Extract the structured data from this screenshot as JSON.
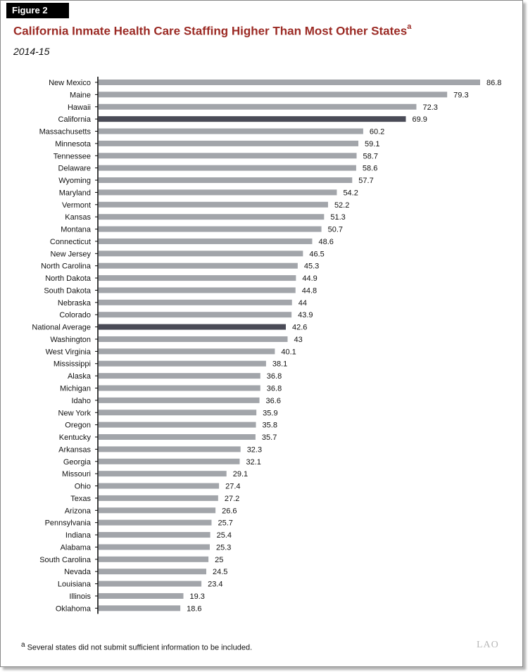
{
  "figure_label": "Figure 2",
  "title": "California Inmate Health Care Staffing Higher Than Most Other States",
  "title_footnote_marker": "a",
  "subtitle": "2014-15",
  "footnote": {
    "marker": "a",
    "text": "Several states did not submit sufficient information to be included."
  },
  "logo_text": "LAO",
  "colors": {
    "bar": "#a2a5aa",
    "highlight_bar": "#4a4b57",
    "title": "#9b2a24"
  },
  "chart_data": {
    "type": "bar",
    "orientation": "horizontal",
    "title": "California Inmate Health Care Staffing Higher Than Most Other States",
    "subtitle": "2014-15",
    "xlabel": "",
    "ylabel": "",
    "xlim": [
      0,
      90
    ],
    "grid": false,
    "highlighted": [
      "California",
      "National Average"
    ],
    "categories": [
      "New Mexico",
      "Maine",
      "Hawaii",
      "California",
      "Massachusetts",
      "Minnesota",
      "Tennessee",
      "Delaware",
      "Wyoming",
      "Maryland",
      "Vermont",
      "Kansas",
      "Montana",
      "Connecticut",
      "New Jersey",
      "North Carolina",
      "North Dakota",
      "South Dakota",
      "Nebraska",
      "Colorado",
      "National Average",
      "Washington",
      "West Virginia",
      "Mississippi",
      "Alaska",
      "Michigan",
      "Idaho",
      "New York",
      "Oregon",
      "Kentucky",
      "Arkansas",
      "Georgia",
      "Missouri",
      "Ohio",
      "Texas",
      "Arizona",
      "Pennsylvania",
      "Indiana",
      "Alabama",
      "South Carolina",
      "Nevada",
      "Louisiana",
      "Illinois",
      "Oklahoma"
    ],
    "values": [
      86.8,
      79.3,
      72.3,
      69.9,
      60.2,
      59.1,
      58.7,
      58.6,
      57.7,
      54.2,
      52.2,
      51.3,
      50.7,
      48.6,
      46.5,
      45.3,
      44.9,
      44.8,
      44,
      43.9,
      42.6,
      43,
      40.1,
      38.1,
      36.8,
      36.8,
      36.6,
      35.9,
      35.8,
      35.7,
      32.3,
      32.1,
      29.1,
      27.4,
      27.2,
      26.6,
      25.7,
      25.4,
      25.3,
      25,
      24.5,
      23.4,
      19.3,
      18.6
    ],
    "value_labels": [
      "86.8",
      "79.3",
      "72.3",
      "69.9",
      "60.2",
      "59.1",
      "58.7",
      "58.6",
      "57.7",
      "54.2",
      "52.2",
      "51.3",
      "50.7",
      "48.6",
      "46.5",
      "45.3",
      "44.9",
      "44.8",
      "44",
      "43.9",
      "42.6",
      "43",
      "40.1",
      "38.1",
      "36.8",
      "36.8",
      "36.6",
      "35.9",
      "35.8",
      "35.7",
      "32.3",
      "32.1",
      "29.1",
      "27.4",
      "27.2",
      "26.6",
      "25.7",
      "25.4",
      "25.3",
      "25",
      "24.5",
      "23.4",
      "19.3",
      "18.6"
    ]
  }
}
